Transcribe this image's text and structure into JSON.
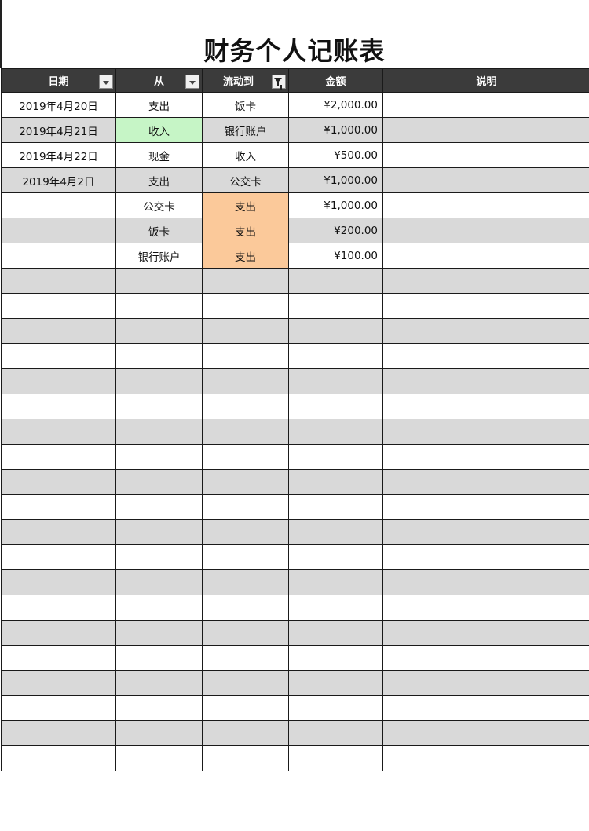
{
  "title": "财务个人记账表",
  "columns": [
    {
      "label": "日期",
      "filter": "dropdown"
    },
    {
      "label": "从",
      "filter": "dropdown"
    },
    {
      "label": "流动到",
      "filter": "filter-active"
    },
    {
      "label": "金额"
    },
    {
      "label": "说明"
    }
  ],
  "rows": [
    {
      "date": "2019年4月20日",
      "from": "支出",
      "to": "饭卡",
      "amount": "¥2,000.00",
      "note": ""
    },
    {
      "date": "2019年4月21日",
      "from": "收入",
      "to": "银行账户",
      "amount": "¥1,000.00",
      "note": "",
      "from_highlight": "#c6f5c6"
    },
    {
      "date": "2019年4月22日",
      "from": "现金",
      "to": "收入",
      "amount": "¥500.00",
      "note": ""
    },
    {
      "date": "2019年4月2日",
      "from": "支出",
      "to": "公交卡",
      "amount": "¥1,000.00",
      "note": ""
    },
    {
      "date": "",
      "from": "公交卡",
      "to": "支出",
      "amount": "¥1,000.00",
      "note": "",
      "to_highlight": "#fbc99a"
    },
    {
      "date": "",
      "from": "饭卡",
      "to": "支出",
      "amount": "¥200.00",
      "note": "",
      "to_highlight": "#fbc99a"
    },
    {
      "date": "",
      "from": "银行账户",
      "to": "支出",
      "amount": "¥100.00",
      "note": "",
      "to_highlight": "#fbc99a"
    }
  ],
  "empty_rows": 20,
  "colors": {
    "header_bg": "#3b3b3b",
    "stripe": "#d9d9d9",
    "green": "#c6f5c6",
    "orange": "#fbc99a"
  }
}
